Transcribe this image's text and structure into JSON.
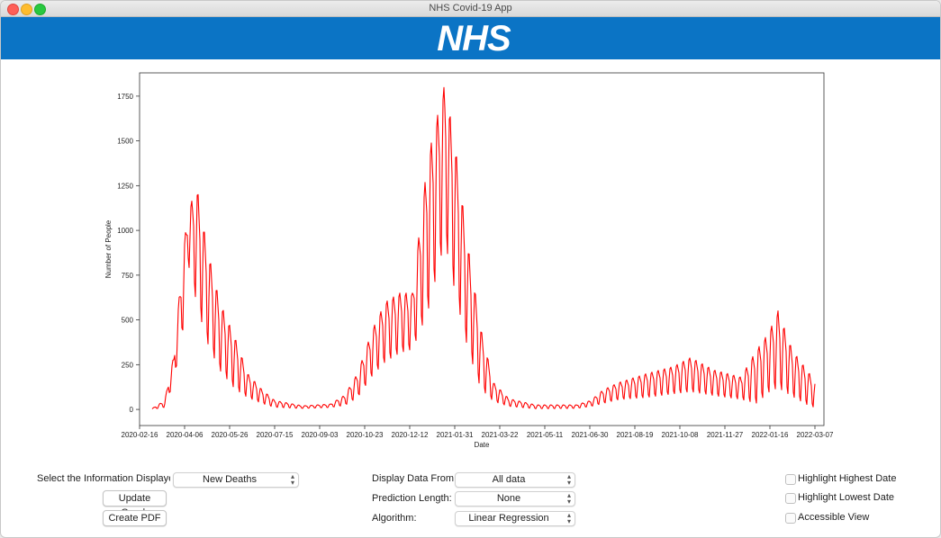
{
  "window": {
    "title": "NHS Covid-19 App"
  },
  "banner": {
    "logo_text": "NHS",
    "background": "#0b74c5"
  },
  "controls": {
    "info_label": "Select the Information Displayed:",
    "info_value": "New Deaths",
    "update_button": "Update Graph",
    "pdf_button": "Create PDF",
    "display_from_label": "Display Data From:",
    "display_from_value": "All data",
    "prediction_label": "Prediction Length:",
    "prediction_value": "None",
    "algorithm_label": "Algorithm:",
    "algorithm_value": "Linear Regression",
    "highlight_highest": "Highlight Highest Date",
    "highlight_lowest": "Highlight Lowest Date",
    "accessible_view": "Accessible View"
  },
  "chart_data": {
    "type": "line",
    "xlabel": "Date",
    "ylabel": "Number of People",
    "line_color": "#ff0000",
    "y_ticks": [
      0,
      250,
      500,
      750,
      1000,
      1250,
      1500,
      1750
    ],
    "x_ticks": [
      "2020-02-16",
      "2020-04-06",
      "2020-05-26",
      "2020-07-15",
      "2020-09-03",
      "2020-10-23",
      "2020-12-12",
      "2021-01-31",
      "2021-03-22",
      "2021-05-11",
      "2021-06-30",
      "2021-08-19",
      "2021-10-08",
      "2021-11-27",
      "2022-01-16",
      "2022-03-07"
    ],
    "x_range": [
      "2020-02-16",
      "2022-03-17"
    ],
    "ylim": [
      -90,
      1880
    ],
    "weekly_oscillation": true,
    "envelope_approx": [
      {
        "date": "2020-03-01",
        "low": 0,
        "high": 5
      },
      {
        "date": "2020-03-15",
        "low": 10,
        "high": 50
      },
      {
        "date": "2020-03-25",
        "low": 150,
        "high": 300
      },
      {
        "date": "2020-04-05",
        "low": 450,
        "high": 900
      },
      {
        "date": "2020-04-10",
        "low": 800,
        "high": 1120
      },
      {
        "date": "2020-04-20",
        "low": 550,
        "high": 1230
      },
      {
        "date": "2020-05-01",
        "low": 350,
        "high": 900
      },
      {
        "date": "2020-05-15",
        "low": 200,
        "high": 600
      },
      {
        "date": "2020-06-01",
        "low": 100,
        "high": 400
      },
      {
        "date": "2020-06-15",
        "low": 60,
        "high": 200
      },
      {
        "date": "2020-07-01",
        "low": 30,
        "high": 110
      },
      {
        "date": "2020-07-15",
        "low": 10,
        "high": 50
      },
      {
        "date": "2020-08-15",
        "low": 5,
        "high": 20
      },
      {
        "date": "2020-09-15",
        "low": 10,
        "high": 30
      },
      {
        "date": "2020-10-01",
        "low": 20,
        "high": 80
      },
      {
        "date": "2020-10-15",
        "low": 60,
        "high": 200
      },
      {
        "date": "2020-11-01",
        "low": 180,
        "high": 450
      },
      {
        "date": "2020-11-15",
        "low": 250,
        "high": 600
      },
      {
        "date": "2020-12-01",
        "low": 300,
        "high": 650
      },
      {
        "date": "2020-12-15",
        "low": 320,
        "high": 650
      },
      {
        "date": "2021-01-01",
        "low": 500,
        "high": 1400
      },
      {
        "date": "2021-01-20",
        "low": 900,
        "high": 1820
      },
      {
        "date": "2021-02-01",
        "low": 600,
        "high": 1450
      },
      {
        "date": "2021-02-15",
        "low": 300,
        "high": 900
      },
      {
        "date": "2021-03-01",
        "low": 100,
        "high": 450
      },
      {
        "date": "2021-03-15",
        "low": 40,
        "high": 150
      },
      {
        "date": "2021-04-01",
        "low": 15,
        "high": 60
      },
      {
        "date": "2021-05-01",
        "low": 3,
        "high": 25
      },
      {
        "date": "2021-06-15",
        "low": 5,
        "high": 25
      },
      {
        "date": "2021-07-01",
        "low": 15,
        "high": 50
      },
      {
        "date": "2021-07-15",
        "low": 30,
        "high": 110
      },
      {
        "date": "2021-08-01",
        "low": 50,
        "high": 150
      },
      {
        "date": "2021-09-01",
        "low": 60,
        "high": 200
      },
      {
        "date": "2021-10-01",
        "low": 80,
        "high": 240
      },
      {
        "date": "2021-10-20",
        "low": 90,
        "high": 290
      },
      {
        "date": "2021-11-15",
        "low": 70,
        "high": 220
      },
      {
        "date": "2021-12-15",
        "low": 50,
        "high": 180
      },
      {
        "date": "2022-01-01",
        "low": 20,
        "high": 330
      },
      {
        "date": "2022-01-15",
        "low": 80,
        "high": 430
      },
      {
        "date": "2022-01-25",
        "low": 100,
        "high": 550
      },
      {
        "date": "2022-02-10",
        "low": 60,
        "high": 330
      },
      {
        "date": "2022-03-01",
        "low": 10,
        "high": 200
      },
      {
        "date": "2022-03-07",
        "low": 5,
        "high": 150
      }
    ]
  }
}
